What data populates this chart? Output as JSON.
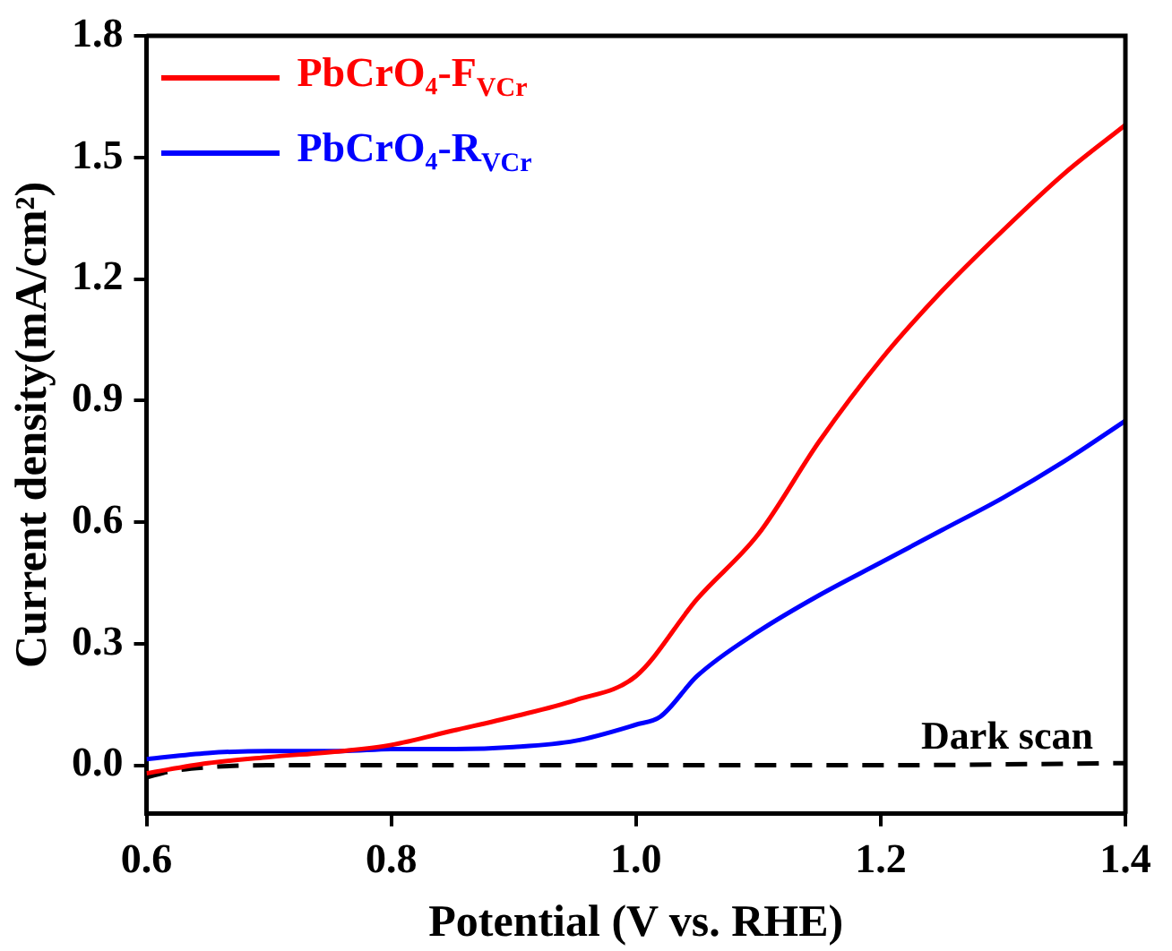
{
  "chart_data": {
    "type": "line",
    "xlabel": "Potential (V vs. RHE)",
    "ylabel": "Current density(mA/cm²)",
    "xlim": [
      0.6,
      1.4
    ],
    "xticks": [
      {
        "value": 0.6,
        "label": "0.6"
      },
      {
        "value": 0.8,
        "label": "0.8"
      },
      {
        "value": 1.0,
        "label": "1.0"
      },
      {
        "value": 1.2,
        "label": "1.2"
      },
      {
        "value": 1.4,
        "label": "1.4"
      }
    ],
    "ylim": [
      -0.12,
      1.8
    ],
    "yticks": [
      {
        "value": 0,
        "label": "0.0"
      },
      {
        "value": 0.3,
        "label": "0.3"
      },
      {
        "value": 0.6,
        "label": "0.6"
      },
      {
        "value": 0.9,
        "label": "0.9"
      },
      {
        "value": 1.2,
        "label": "1.2"
      },
      {
        "value": 1.5,
        "label": "1.5"
      },
      {
        "value": 1.8,
        "label": "1.8"
      }
    ],
    "grid": false,
    "legend": "top left",
    "marker": "none",
    "annotations": [
      "Dark scan"
    ],
    "series": [
      {
        "name": "PbCrO₄-F$_{VCr}$",
        "color": "#ff0000",
        "x": [
          0.6,
          0.65,
          0.7,
          0.76,
          0.8,
          0.85,
          0.9,
          0.95,
          1.0,
          1.05,
          1.1,
          1.15,
          1.2,
          1.25,
          1.3,
          1.35,
          1.4
        ],
        "values": [
          -0.02,
          0.005,
          0.02,
          0.035,
          0.05,
          0.085,
          0.12,
          0.16,
          0.22,
          0.41,
          0.57,
          0.8,
          1.0,
          1.17,
          1.32,
          1.46,
          1.58
        ]
      },
      {
        "name": "PbCrO₄-R$_{VCr}$",
        "color": "#0000ff",
        "x": [
          0.6,
          0.65,
          0.7,
          0.76,
          0.8,
          0.85,
          0.9,
          0.95,
          1.0,
          1.02,
          1.05,
          1.1,
          1.15,
          1.2,
          1.25,
          1.3,
          1.35,
          1.4
        ],
        "values": [
          0.015,
          0.03,
          0.035,
          0.035,
          0.04,
          0.04,
          0.045,
          0.06,
          0.1,
          0.12,
          0.22,
          0.33,
          0.42,
          0.5,
          0.58,
          0.66,
          0.75,
          0.85
        ]
      },
      {
        "color": "#000000",
        "line_style": "dashed",
        "x": [
          0.6,
          0.62,
          0.65,
          0.7,
          0.8,
          1.0,
          1.2,
          1.4
        ],
        "values": [
          -0.03,
          -0.015,
          -0.005,
          0.0,
          0.0,
          0.0,
          0.0,
          0.005
        ]
      }
    ]
  }
}
